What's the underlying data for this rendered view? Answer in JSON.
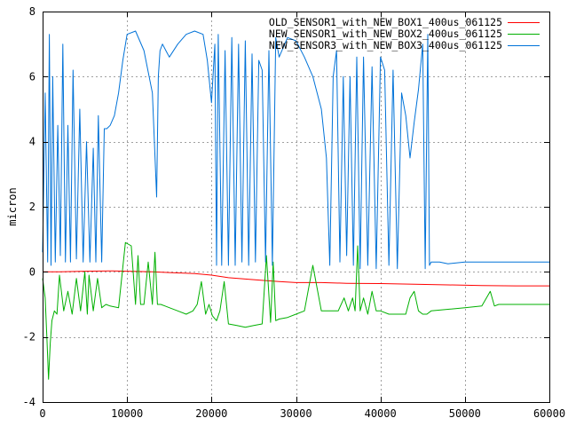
{
  "chart_data": {
    "type": "line",
    "title": "",
    "xlabel": "",
    "ylabel": "micron",
    "xlim": [
      0,
      60000
    ],
    "ylim": [
      -4,
      8
    ],
    "xticks": [
      0,
      10000,
      20000,
      30000,
      40000,
      50000,
      60000
    ],
    "yticks": [
      -4,
      -2,
      0,
      2,
      4,
      6,
      8
    ],
    "grid": true,
    "legend_position": "top-right",
    "series": [
      {
        "name": "OLD_SENSOR1_with_NEW_BOX1_400us_061125",
        "color": "#ff0000",
        "x": [
          0,
          2000,
          5000,
          8000,
          10000,
          13000,
          15000,
          18000,
          20000,
          22000,
          24000,
          26000,
          28000,
          30000,
          33000,
          36000,
          40000,
          44000,
          48000,
          52000,
          56000,
          60000
        ],
        "y": [
          0.0,
          0.0,
          0.02,
          0.03,
          0.02,
          0.0,
          -0.02,
          -0.05,
          -0.1,
          -0.18,
          -0.22,
          -0.26,
          -0.3,
          -0.33,
          -0.33,
          -0.35,
          -0.36,
          -0.38,
          -0.4,
          -0.42,
          -0.43,
          -0.43
        ]
      },
      {
        "name": "NEW_SENSOR1_with_NEW_BOX2_400us_061125",
        "color": "#00b000",
        "x": [
          0,
          300,
          500,
          700,
          900,
          1100,
          1400,
          1700,
          2000,
          2500,
          3000,
          3500,
          4000,
          4500,
          5000,
          5300,
          5500,
          6000,
          6500,
          7000,
          7500,
          8000,
          9000,
          9800,
          10500,
          11000,
          11300,
          11600,
          12000,
          12500,
          13000,
          13300,
          13600,
          14000,
          14500,
          15000,
          16000,
          17000,
          17800,
          18300,
          18800,
          19300,
          19700,
          20100,
          20600,
          21000,
          21500,
          22000,
          23000,
          24000,
          25000,
          26000,
          26500,
          27000,
          27300,
          27600,
          28000,
          29000,
          30000,
          31000,
          32000,
          33000,
          34000,
          35000,
          35700,
          36200,
          36700,
          37000,
          37300,
          37600,
          38000,
          38500,
          39000,
          39500,
          40000,
          41000,
          42000,
          43000,
          43500,
          44000,
          44500,
          45000,
          45500,
          46000,
          48000,
          50000,
          52000,
          53000,
          53500,
          54000,
          56000,
          58000,
          60000
        ],
        "y": [
          -0.2,
          -0.8,
          -2.0,
          -3.3,
          -2.2,
          -1.5,
          -1.2,
          -1.3,
          -0.1,
          -1.2,
          -0.6,
          -1.3,
          -0.2,
          -1.2,
          0.0,
          -1.3,
          -0.1,
          -1.2,
          -0.2,
          -1.1,
          -1.0,
          -1.05,
          -1.1,
          0.9,
          0.8,
          -1.0,
          0.5,
          -1.0,
          -1.0,
          0.3,
          -1.0,
          0.6,
          -1.0,
          -1.0,
          -1.05,
          -1.1,
          -1.2,
          -1.3,
          -1.2,
          -1.0,
          -0.3,
          -1.3,
          -1.0,
          -1.35,
          -1.5,
          -1.2,
          -0.3,
          -1.6,
          -1.65,
          -1.7,
          -1.65,
          -1.6,
          0.5,
          -1.55,
          0.3,
          -1.5,
          -1.45,
          -1.4,
          -1.3,
          -1.2,
          0.2,
          -1.2,
          -1.2,
          -1.2,
          -0.8,
          -1.2,
          -0.8,
          -1.2,
          0.8,
          -1.2,
          -0.8,
          -1.3,
          -0.6,
          -1.2,
          -1.2,
          -1.3,
          -1.3,
          -1.3,
          -0.8,
          -0.6,
          -1.2,
          -1.3,
          -1.3,
          -1.2,
          -1.15,
          -1.1,
          -1.05,
          -0.6,
          -1.05,
          -1.0,
          -1.0,
          -1.0,
          -1.0
        ]
      },
      {
        "name": "NEW_SENSOR3_with_NEW_BOX3_400us_061125",
        "color": "#0072d8",
        "x": [
          0,
          300,
          600,
          800,
          1000,
          1200,
          1500,
          1800,
          2100,
          2400,
          2700,
          3000,
          3300,
          3600,
          4000,
          4400,
          4800,
          5200,
          5600,
          6000,
          6300,
          6600,
          7000,
          7300,
          7600,
          8000,
          8500,
          9000,
          9500,
          10000,
          11000,
          12000,
          13000,
          13500,
          13700,
          13900,
          14200,
          14600,
          15000,
          16000,
          17000,
          18000,
          19000,
          19500,
          20000,
          20400,
          20600,
          20800,
          21200,
          21600,
          22000,
          22400,
          22800,
          23200,
          23600,
          24000,
          24400,
          24800,
          25200,
          25600,
          26000,
          26400,
          26800,
          27200,
          27600,
          28000,
          29000,
          30000,
          31000,
          32000,
          33000,
          33600,
          34000,
          34400,
          34800,
          35200,
          35600,
          36000,
          36400,
          36800,
          37200,
          37600,
          38000,
          38500,
          39000,
          39500,
          40000,
          40500,
          41000,
          41500,
          42000,
          42500,
          43000,
          43500,
          44000,
          44500,
          45000,
          45300,
          45600,
          45800,
          46000,
          47000,
          48000,
          50000,
          52000,
          54000,
          56000,
          58000,
          59500,
          60000
        ],
        "y": [
          0.6,
          5.5,
          0.3,
          7.3,
          0.2,
          6.0,
          0.3,
          4.5,
          0.5,
          7.0,
          0.3,
          4.5,
          0.3,
          6.2,
          0.4,
          5.0,
          0.3,
          4.0,
          0.3,
          3.8,
          0.3,
          4.8,
          0.3,
          4.4,
          4.4,
          4.5,
          4.8,
          5.5,
          6.5,
          7.3,
          7.4,
          6.8,
          5.5,
          2.3,
          6.0,
          6.8,
          7.0,
          6.8,
          6.6,
          7.0,
          7.3,
          7.4,
          7.3,
          6.5,
          5.2,
          7.0,
          0.2,
          7.3,
          0.2,
          6.8,
          0.2,
          7.2,
          0.2,
          7.0,
          0.3,
          7.1,
          0.2,
          6.7,
          0.3,
          6.5,
          6.2,
          0.3,
          6.8,
          0.2,
          7.2,
          6.6,
          7.2,
          7.1,
          6.6,
          6.0,
          5.0,
          3.5,
          0.2,
          6.0,
          6.8,
          0.3,
          6.0,
          0.5,
          6.0,
          0.2,
          6.6,
          0.1,
          6.6,
          0.2,
          6.3,
          0.1,
          6.6,
          6.2,
          0.2,
          6.2,
          0.1,
          5.5,
          4.8,
          3.5,
          4.6,
          5.6,
          7.0,
          0.1,
          7.3,
          0.2,
          0.3,
          0.3,
          0.25,
          0.3,
          0.3,
          0.3,
          0.3,
          0.3,
          0.3,
          0.3
        ]
      }
    ]
  }
}
